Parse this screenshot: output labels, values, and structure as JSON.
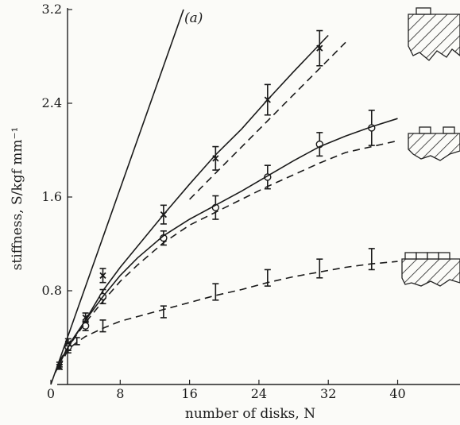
{
  "chart_data": {
    "type": "line",
    "panel_label": "(a)",
    "xlabel": "number of disks, N",
    "ylabel": "stiffness, S/kgf mm⁻¹",
    "xlim": [
      0,
      46
    ],
    "ylim": [
      0,
      3.2
    ],
    "xticks": [
      0,
      8,
      16,
      24,
      32,
      40
    ],
    "yticks": [
      0.8,
      1.6,
      2.4,
      3.2
    ],
    "grid": false,
    "series": [
      {
        "marker": "none",
        "style": "solid",
        "x": [
          0,
          15.3
        ],
        "y": [
          0,
          3.2
        ]
      },
      {
        "marker": "x",
        "style": "points",
        "x": [
          1,
          2,
          4,
          6,
          13,
          19,
          25,
          31
        ],
        "y": [
          0.15,
          0.35,
          0.57,
          0.93,
          1.45,
          1.93,
          2.43,
          2.87
        ],
        "err": [
          0.02,
          0.04,
          0.04,
          0.06,
          0.08,
          0.1,
          0.13,
          0.15
        ]
      },
      {
        "marker": "none",
        "style": "solid",
        "x": [
          0.5,
          2,
          4,
          6,
          8,
          10,
          13,
          16,
          19,
          22,
          25,
          28,
          32
        ],
        "y": [
          0.1,
          0.33,
          0.55,
          0.8,
          1.0,
          1.18,
          1.45,
          1.71,
          1.96,
          2.18,
          2.43,
          2.67,
          2.98
        ]
      },
      {
        "marker": "none",
        "style": "dashed",
        "x": [
          16,
          34
        ],
        "y": [
          1.58,
          2.92
        ]
      },
      {
        "marker": "circle",
        "style": "points",
        "x": [
          2,
          4,
          6,
          13,
          19,
          25,
          31,
          37
        ],
        "y": [
          0.32,
          0.5,
          0.75,
          1.25,
          1.51,
          1.77,
          2.05,
          2.19
        ],
        "err": [
          0.03,
          0.04,
          0.06,
          0.06,
          0.1,
          0.1,
          0.1,
          0.15
        ]
      },
      {
        "marker": "none",
        "style": "solid",
        "x": [
          1,
          2,
          4,
          6,
          8,
          10,
          13,
          16,
          19,
          22,
          25,
          28,
          31,
          34,
          37,
          40
        ],
        "y": [
          0.18,
          0.32,
          0.55,
          0.75,
          0.93,
          1.08,
          1.27,
          1.41,
          1.53,
          1.65,
          1.78,
          1.91,
          2.03,
          2.12,
          2.2,
          2.27
        ]
      },
      {
        "marker": "none",
        "style": "dashed",
        "x": [
          1,
          2,
          4,
          6,
          8,
          10,
          13,
          16,
          19,
          22,
          25,
          28,
          31,
          34,
          37,
          40
        ],
        "y": [
          0.2,
          0.32,
          0.53,
          0.71,
          0.88,
          1.02,
          1.21,
          1.36,
          1.47,
          1.58,
          1.69,
          1.79,
          1.89,
          1.98,
          2.03,
          2.08
        ]
      },
      {
        "marker": "bar",
        "style": "points",
        "x": [
          1,
          2,
          3,
          6,
          13,
          19,
          25,
          31,
          37
        ],
        "y": [
          0.17,
          0.3,
          0.37,
          0.5,
          0.62,
          0.79,
          0.91,
          0.99,
          1.07
        ],
        "err": [
          0.02,
          0.03,
          0.03,
          0.05,
          0.05,
          0.07,
          0.07,
          0.08,
          0.09
        ]
      },
      {
        "marker": "none",
        "style": "dashed",
        "x": [
          1,
          2,
          3,
          4,
          6,
          8,
          10,
          13,
          16,
          19,
          22,
          25,
          28,
          31,
          34,
          37,
          40
        ],
        "y": [
          0.15,
          0.3,
          0.36,
          0.41,
          0.48,
          0.54,
          0.58,
          0.64,
          0.7,
          0.76,
          0.81,
          0.87,
          0.92,
          0.96,
          1.0,
          1.03,
          1.05
        ]
      }
    ]
  },
  "icons": [
    "disk-cross-section-icon-top",
    "disk-cross-section-icon-middle",
    "disk-cross-section-icon-bottom"
  ]
}
